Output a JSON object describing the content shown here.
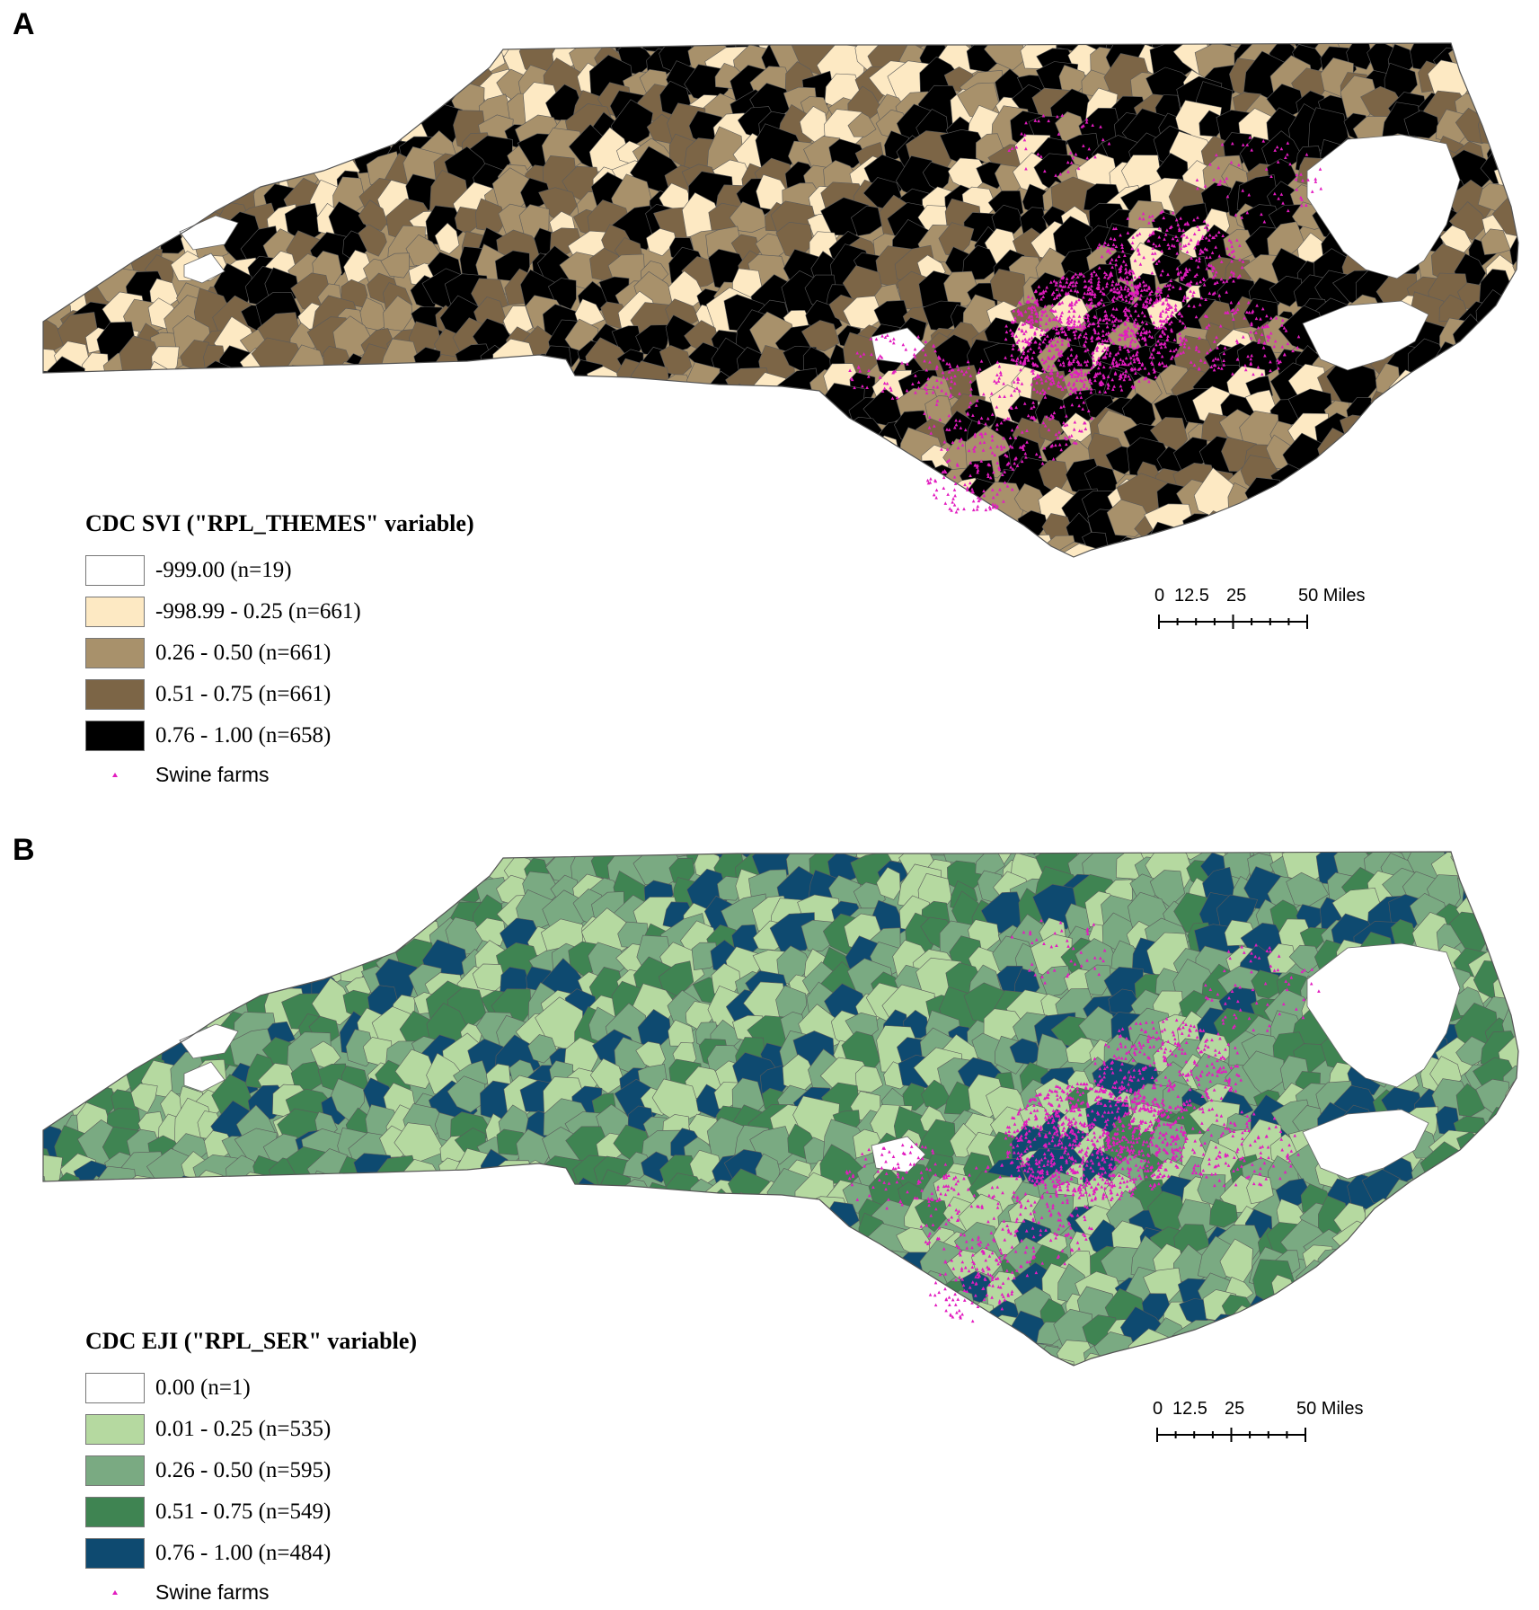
{
  "panels": [
    {
      "label": "A",
      "legend": {
        "title": "CDC SVI (\"RPL_THEMES\" variable)",
        "classes": [
          {
            "label": "-999.00 (n=19)",
            "color": "#ffffff"
          },
          {
            "label": "-998.99 - 0.25 (n=661)",
            "color": "#fde9c3"
          },
          {
            "label": "0.26 - 0.50 (n=661)",
            "color": "#a8916b"
          },
          {
            "label": "0.51 - 0.75 (n=661)",
            "color": "#7c6546"
          },
          {
            "label": "0.76 - 1.00 (n=658)",
            "color": "#000000"
          }
        ],
        "points_label": "Swine farms",
        "points_color": "#e21cbf"
      },
      "scalebar": {
        "ticks": [
          "0",
          "12.5",
          "25",
          "50 Miles"
        ]
      }
    },
    {
      "label": "B",
      "legend": {
        "title": "CDC EJI (\"RPL_SER\" variable)",
        "classes": [
          {
            "label": "0.00 (n=1)",
            "color": "#ffffff"
          },
          {
            "label": "0.01 - 0.25 (n=535)",
            "color": "#b5d9a0"
          },
          {
            "label": "0.26 - 0.50 (n=595)",
            "color": "#7aaa82"
          },
          {
            "label": "0.51 - 0.75 (n=549)",
            "color": "#3f8452"
          },
          {
            "label": "0.76 - 1.00 (n=484)",
            "color": "#0e4a70"
          }
        ],
        "points_label": "Swine farms",
        "points_color": "#e21cbf"
      },
      "scalebar": {
        "ticks": [
          "0",
          "12.5",
          "25",
          "50 Miles"
        ]
      }
    }
  ]
}
